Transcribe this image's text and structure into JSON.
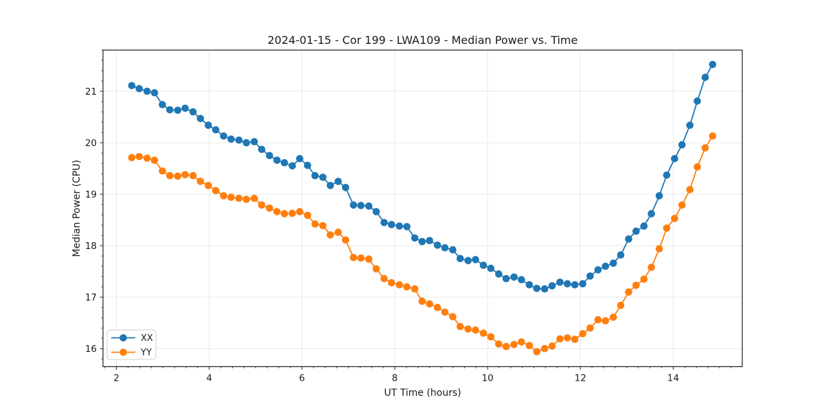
{
  "figure": {
    "background": "#ffffff",
    "grid_color": "#e7e7e7",
    "spine_color": "#1a1a1a",
    "tick_color": "#262626"
  },
  "chart_data": {
    "type": "line",
    "title": "2024-01-15 - Cor 199 - LWA109 - Median Power vs. Time",
    "xlabel": "UT Time (hours)",
    "ylabel": "Median Power (CPU)",
    "xlim": [
      1.71,
      15.49
    ],
    "ylim": [
      15.65,
      21.8
    ],
    "x_ticks": [
      2,
      4,
      6,
      8,
      10,
      12,
      14
    ],
    "y_ticks": [
      16,
      17,
      18,
      19,
      20,
      21
    ],
    "x_minor_step": 0.25,
    "y_minor_step": 0.2,
    "grid": true,
    "legend_position": "lower left",
    "x": [
      2.33,
      2.49,
      2.66,
      2.82,
      2.99,
      3.15,
      3.32,
      3.48,
      3.65,
      3.81,
      3.98,
      4.14,
      4.31,
      4.47,
      4.64,
      4.8,
      4.97,
      5.13,
      5.3,
      5.46,
      5.62,
      5.79,
      5.95,
      6.12,
      6.28,
      6.45,
      6.61,
      6.78,
      6.94,
      7.11,
      7.27,
      7.44,
      7.6,
      7.77,
      7.93,
      8.1,
      8.26,
      8.43,
      8.59,
      8.75,
      8.92,
      9.08,
      9.25,
      9.41,
      9.58,
      9.74,
      9.91,
      10.07,
      10.24,
      10.4,
      10.57,
      10.73,
      10.9,
      11.06,
      11.23,
      11.39,
      11.56,
      11.72,
      11.88,
      12.05,
      12.21,
      12.38,
      12.54,
      12.71,
      12.87,
      13.04,
      13.2,
      13.37,
      13.53,
      13.7,
      13.86,
      14.03,
      14.19,
      14.36,
      14.52,
      14.69,
      14.85
    ],
    "series": [
      {
        "name": "XX",
        "color": "#1f77b4",
        "values": [
          21.11,
          21.05,
          21.0,
          20.97,
          20.74,
          20.64,
          20.63,
          20.67,
          20.6,
          20.47,
          20.34,
          20.25,
          20.13,
          20.07,
          20.05,
          20.0,
          20.02,
          19.87,
          19.75,
          19.66,
          19.61,
          19.55,
          19.69,
          19.56,
          19.36,
          19.33,
          19.17,
          19.25,
          19.13,
          18.79,
          18.78,
          18.77,
          18.66,
          18.45,
          18.41,
          18.38,
          18.37,
          18.15,
          18.08,
          18.1,
          18.01,
          17.96,
          17.92,
          17.75,
          17.71,
          17.73,
          17.62,
          17.56,
          17.45,
          17.36,
          17.39,
          17.34,
          17.24,
          17.17,
          17.16,
          17.22,
          17.29,
          17.26,
          17.24,
          17.26,
          17.41,
          17.53,
          17.6,
          17.66,
          17.82,
          18.13,
          18.28,
          18.38,
          18.62,
          18.97,
          19.37,
          19.69,
          19.96,
          20.34,
          20.81,
          21.27,
          21.52
        ]
      },
      {
        "name": "YY",
        "color": "#ff7f0e",
        "values": [
          19.71,
          19.73,
          19.7,
          19.66,
          19.45,
          19.36,
          19.35,
          19.38,
          19.36,
          19.25,
          19.17,
          19.07,
          18.97,
          18.94,
          18.92,
          18.9,
          18.92,
          18.79,
          18.73,
          18.66,
          18.62,
          18.63,
          18.66,
          18.59,
          18.42,
          18.39,
          18.21,
          18.26,
          18.11,
          17.77,
          17.76,
          17.74,
          17.55,
          17.36,
          17.28,
          17.24,
          17.2,
          17.16,
          16.92,
          16.87,
          16.8,
          16.71,
          16.62,
          16.43,
          16.38,
          16.36,
          16.3,
          16.23,
          16.09,
          16.04,
          16.08,
          16.13,
          16.06,
          15.94,
          16.0,
          16.05,
          16.19,
          16.21,
          16.18,
          16.29,
          16.4,
          16.56,
          16.54,
          16.61,
          16.84,
          17.1,
          17.23,
          17.35,
          17.58,
          17.94,
          18.34,
          18.53,
          18.79,
          19.09,
          19.53,
          19.9,
          20.13
        ]
      }
    ]
  },
  "legend": {
    "items": [
      {
        "label": "XX",
        "color": "#1f77b4"
      },
      {
        "label": "YY",
        "color": "#ff7f0e"
      }
    ]
  }
}
